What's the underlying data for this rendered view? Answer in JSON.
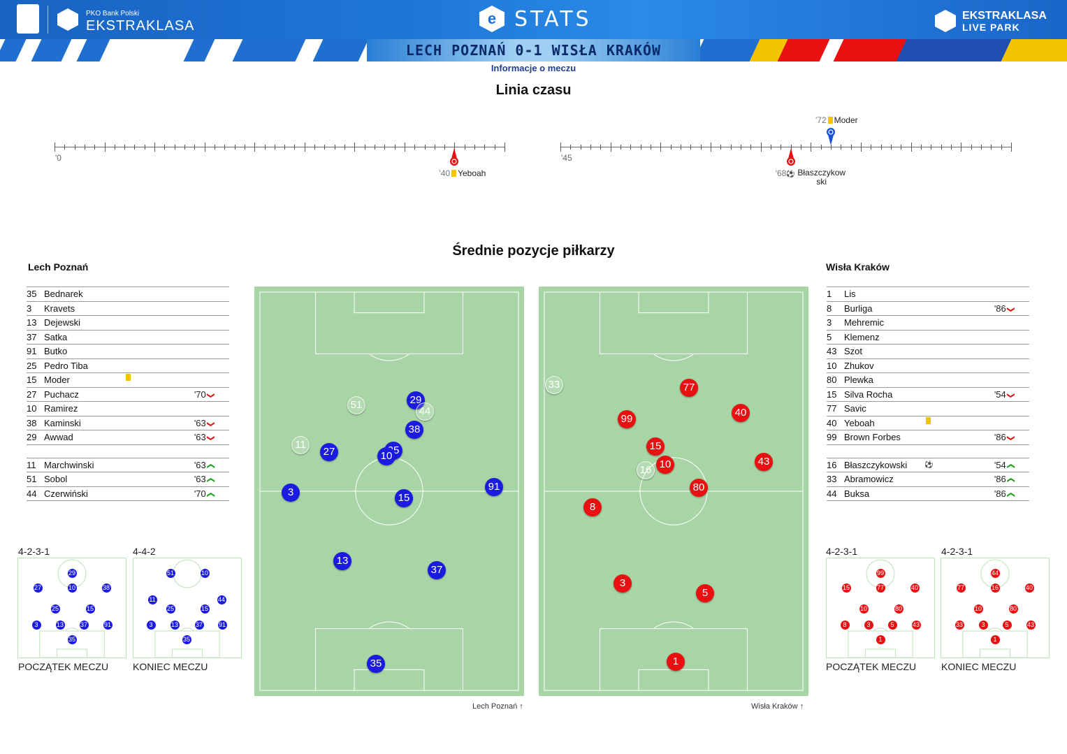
{
  "header": {
    "sponsor_small": "PKO Bank Polski",
    "league_name": "EKSTRAKLASA",
    "stats_label": "STATS",
    "right_logo_line1": "EKSTRAKLASA",
    "right_logo_line2": "LIVE PARK",
    "match_title": "LECH POZNAŃ 0-1 WISŁA KRAKÓW",
    "info_link": "Informacje o meczu"
  },
  "timeline": {
    "title": "Linia czasu",
    "half1_start": "'0",
    "half2_start": "'45",
    "events": [
      {
        "minute": "'40",
        "type": "yellow-card",
        "player": "Yeboah",
        "team": "Wisła Kraków",
        "half": 1
      },
      {
        "minute": "'68",
        "type": "goal",
        "player": "Błaszczykow ski",
        "team": "Wisła Kraków",
        "half": 2
      },
      {
        "minute": "'72",
        "type": "yellow-card",
        "player": "Moder",
        "team": "Lech Poznań",
        "half": 2
      }
    ]
  },
  "positions_title": "Średnie pozycje piłkarzy",
  "home": {
    "name": "Lech Poznań",
    "color": "#1a1ae0",
    "players": [
      {
        "num": "35",
        "name": "Bednarek",
        "time": "",
        "icon": ""
      },
      {
        "num": "3",
        "name": "Kravets",
        "time": "",
        "icon": ""
      },
      {
        "num": "13",
        "name": "Dejewski",
        "time": "",
        "icon": ""
      },
      {
        "num": "37",
        "name": "Satka",
        "time": "",
        "icon": ""
      },
      {
        "num": "91",
        "name": "Butko",
        "time": "",
        "icon": ""
      },
      {
        "num": "25",
        "name": "Pedro Tiba",
        "time": "",
        "icon": ""
      },
      {
        "num": "15",
        "name": "Moder",
        "time": "",
        "icon": "yellow-card"
      },
      {
        "num": "27",
        "name": "Puchacz",
        "time": "'70",
        "icon": "sub-out"
      },
      {
        "num": "10",
        "name": "Ramirez",
        "time": "",
        "icon": ""
      },
      {
        "num": "38",
        "name": "Kaminski",
        "time": "'63",
        "icon": "sub-out"
      },
      {
        "num": "29",
        "name": "Awwad",
        "time": "'63",
        "icon": "sub-out"
      }
    ],
    "subs": [
      {
        "num": "11",
        "name": "Marchwinski",
        "time": "'63",
        "icon": "sub-in"
      },
      {
        "num": "51",
        "name": "Sobol",
        "time": "'63",
        "icon": "sub-in"
      },
      {
        "num": "44",
        "name": "Czerwiński",
        "time": "'70",
        "icon": "sub-in"
      }
    ],
    "pitch_caption": "Lech Poznań",
    "start_formation": "4-2-3-1",
    "end_formation": "4-4-2",
    "start_caption": "POCZĄTEK MECZU",
    "end_caption": "KONIEC MECZU"
  },
  "away": {
    "name": "Wisła Kraków",
    "color": "#e81010",
    "players": [
      {
        "num": "1",
        "name": "Lis",
        "time": "",
        "icon": ""
      },
      {
        "num": "8",
        "name": "Burliga",
        "time": "'86",
        "icon": "sub-out"
      },
      {
        "num": "3",
        "name": "Mehremic",
        "time": "",
        "icon": ""
      },
      {
        "num": "5",
        "name": "Klemenz",
        "time": "",
        "icon": ""
      },
      {
        "num": "43",
        "name": "Szot",
        "time": "",
        "icon": ""
      },
      {
        "num": "10",
        "name": "Zhukov",
        "time": "",
        "icon": ""
      },
      {
        "num": "80",
        "name": "Plewka",
        "time": "",
        "icon": ""
      },
      {
        "num": "15",
        "name": "Silva Rocha",
        "time": "'54",
        "icon": "sub-out"
      },
      {
        "num": "77",
        "name": "Savic",
        "time": "",
        "icon": ""
      },
      {
        "num": "40",
        "name": "Yeboah",
        "time": "",
        "icon": "yellow-card"
      },
      {
        "num": "99",
        "name": "Brown Forbes",
        "time": "'86",
        "icon": "sub-out"
      }
    ],
    "subs": [
      {
        "num": "16",
        "name": "Błaszczykowski",
        "time": "'54",
        "icon": "goal+sub-in"
      },
      {
        "num": "33",
        "name": "Abramowicz",
        "time": "'86",
        "icon": "sub-in"
      },
      {
        "num": "44",
        "name": "Buksa",
        "time": "'86",
        "icon": "sub-in"
      }
    ],
    "pitch_caption": "Wisła Kraków",
    "start_formation": "4-2-3-1",
    "end_formation": "4-2-3-1",
    "start_caption": "POCZĄTEK MECZU",
    "end_caption": "KONIEC MECZU"
  },
  "home_pitch_markers": [
    {
      "num": "29",
      "sub": false
    },
    {
      "num": "44",
      "sub": true
    },
    {
      "num": "51",
      "sub": true
    },
    {
      "num": "38",
      "sub": false
    },
    {
      "num": "11",
      "sub": true
    },
    {
      "num": "27",
      "sub": false
    },
    {
      "num": "25",
      "sub": false
    },
    {
      "num": "10",
      "sub": false
    },
    {
      "num": "3",
      "sub": false
    },
    {
      "num": "15",
      "sub": false
    },
    {
      "num": "91",
      "sub": false
    },
    {
      "num": "13",
      "sub": false
    },
    {
      "num": "37",
      "sub": false
    },
    {
      "num": "35",
      "sub": false
    }
  ],
  "away_pitch_markers": [
    {
      "num": "33",
      "sub": true
    },
    {
      "num": "77",
      "sub": false
    },
    {
      "num": "40",
      "sub": false
    },
    {
      "num": "99",
      "sub": false
    },
    {
      "num": "15",
      "sub": false
    },
    {
      "num": "16",
      "sub": true
    },
    {
      "num": "10",
      "sub": false
    },
    {
      "num": "43",
      "sub": false
    },
    {
      "num": "80",
      "sub": false
    },
    {
      "num": "8",
      "sub": false
    },
    {
      "num": "3",
      "sub": false
    },
    {
      "num": "5",
      "sub": false
    },
    {
      "num": "1",
      "sub": false
    }
  ],
  "home_start_dots": [
    "29",
    "27",
    "10",
    "38",
    "25",
    "15",
    "3",
    "13",
    "37",
    "91",
    "35"
  ],
  "home_end_dots": [
    "51",
    "10",
    "11",
    "25",
    "15",
    "44",
    "3",
    "13",
    "37",
    "91",
    "35"
  ],
  "away_start_dots": [
    "99",
    "15",
    "77",
    "40",
    "10",
    "80",
    "8",
    "3",
    "5",
    "43",
    "1"
  ],
  "away_end_dots": [
    "44",
    "77",
    "16",
    "40",
    "10",
    "80",
    "33",
    "3",
    "5",
    "43",
    "1"
  ]
}
